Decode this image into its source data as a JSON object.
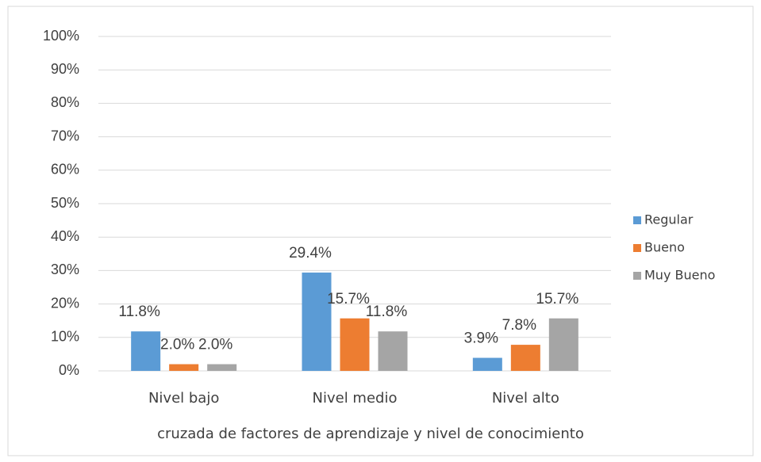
{
  "chart_data": {
    "type": "bar",
    "x_label": "cruzada de factores de aprendizaje y nivel de conocimiento",
    "categories": [
      "Nivel bajo",
      "Nivel medio",
      "Nivel alto"
    ],
    "series": [
      {
        "name": "Regular",
        "color": "#5b9bd5",
        "values": [
          11.8,
          29.4,
          3.9
        ],
        "value_labels": [
          "11.8%",
          "29.4%",
          "3.9%"
        ]
      },
      {
        "name": "Bueno",
        "color": "#ed7d31",
        "values": [
          2.0,
          15.7,
          7.8
        ],
        "value_labels": [
          "2.0%",
          "15.7%",
          "7.8%"
        ]
      },
      {
        "name": "Muy Bueno",
        "color": "#a5a5a5",
        "values": [
          2.0,
          11.8,
          15.7
        ],
        "value_labels": [
          "2.0%",
          "11.8%",
          "15.7%"
        ]
      }
    ],
    "ylim": [
      0,
      100
    ],
    "yticks": [
      {
        "value": 0,
        "label": "0%"
      },
      {
        "value": 10,
        "label": "10%"
      },
      {
        "value": 20,
        "label": "20%"
      },
      {
        "value": 30,
        "label": "30%"
      },
      {
        "value": 40,
        "label": "40%"
      },
      {
        "value": 50,
        "label": "50%"
      },
      {
        "value": 60,
        "label": "60%"
      },
      {
        "value": 70,
        "label": "70%"
      },
      {
        "value": 80,
        "label": "80%"
      },
      {
        "value": 90,
        "label": "90%"
      },
      {
        "value": 100,
        "label": "100%"
      }
    ],
    "grid": true,
    "legend": "right"
  }
}
